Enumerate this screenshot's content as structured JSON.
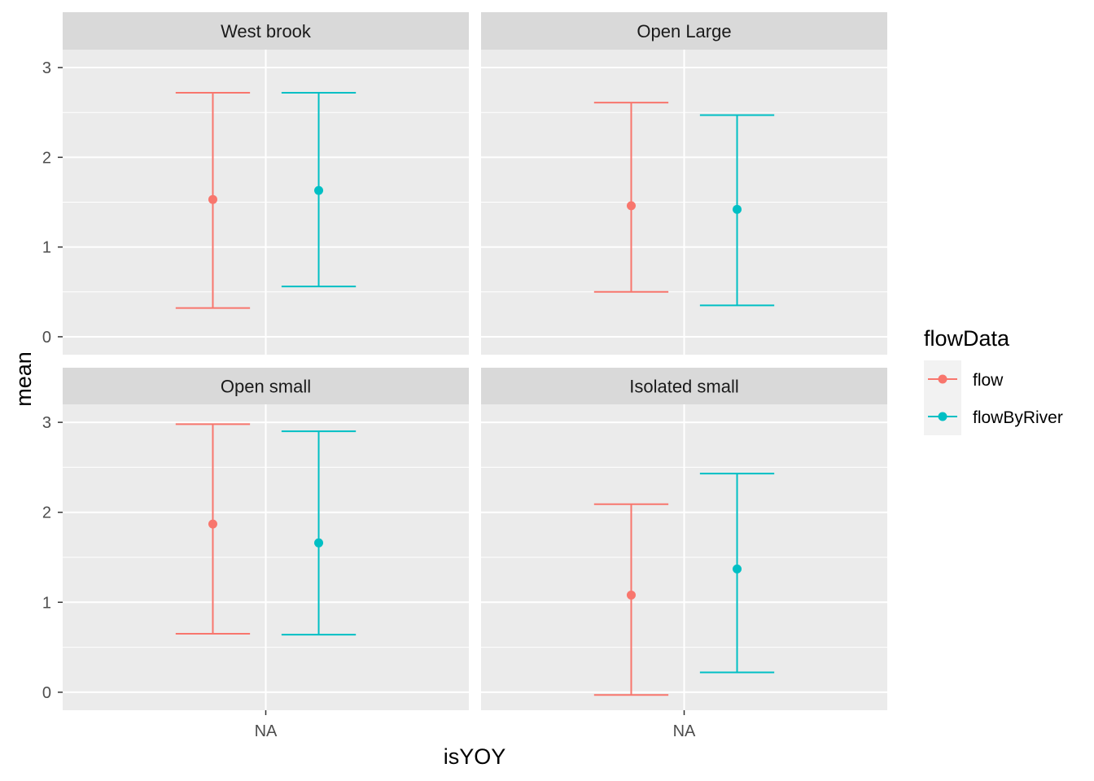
{
  "chart_data": {
    "type": "errorbar",
    "xlabel": "isYOY",
    "ylabel": "mean",
    "x_category": "NA",
    "ylim": [
      -0.2,
      3.2
    ],
    "y_ticks": [
      0,
      1,
      2,
      3
    ],
    "y_tick_labels": [
      "0",
      "1",
      "2",
      "3"
    ],
    "grid": true,
    "legend": {
      "title": "flowData",
      "position": "right",
      "entries": [
        {
          "name": "flow",
          "color": "#F8766D"
        },
        {
          "name": "flowByRiver",
          "color": "#00BFC4"
        }
      ]
    },
    "panels": [
      {
        "title": "West brook",
        "series": [
          {
            "name": "flow",
            "mean": 1.53,
            "lower": 0.32,
            "upper": 2.72
          },
          {
            "name": "flowByRiver",
            "mean": 1.63,
            "lower": 0.56,
            "upper": 2.72
          }
        ]
      },
      {
        "title": "Open Large",
        "series": [
          {
            "name": "flow",
            "mean": 1.46,
            "lower": 0.5,
            "upper": 2.61
          },
          {
            "name": "flowByRiver",
            "mean": 1.42,
            "lower": 0.35,
            "upper": 2.47
          }
        ]
      },
      {
        "title": "Open small",
        "series": [
          {
            "name": "flow",
            "mean": 1.87,
            "lower": 0.65,
            "upper": 2.98
          },
          {
            "name": "flowByRiver",
            "mean": 1.66,
            "lower": 0.64,
            "upper": 2.9
          }
        ]
      },
      {
        "title": "Isolated small",
        "series": [
          {
            "name": "flow",
            "mean": 1.08,
            "lower": -0.03,
            "upper": 2.09
          },
          {
            "name": "flowByRiver",
            "mean": 1.37,
            "lower": 0.22,
            "upper": 2.43
          }
        ]
      }
    ]
  }
}
